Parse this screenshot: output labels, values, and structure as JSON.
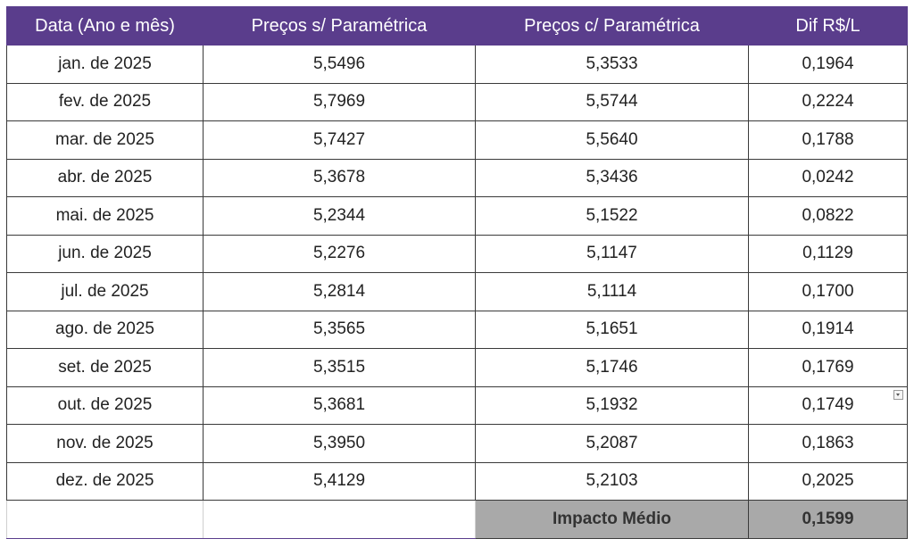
{
  "table": {
    "header": [
      "Data (Ano e mês)",
      "Preços s/ Paramétrica",
      "Preços c/ Paramétrica",
      "Dif R$/L"
    ],
    "rows": [
      [
        "jan. de 2025",
        "5,5496",
        "5,3533",
        "0,1964"
      ],
      [
        "fev. de 2025",
        "5,7969",
        "5,5744",
        "0,2224"
      ],
      [
        "mar. de 2025",
        "5,7427",
        "5,5640",
        "0,1788"
      ],
      [
        "abr. de 2025",
        "5,3678",
        "5,3436",
        "0,0242"
      ],
      [
        "mai. de 2025",
        "5,2344",
        "5,1522",
        "0,0822"
      ],
      [
        "jun. de 2025",
        "5,2276",
        "5,1147",
        "0,1129"
      ],
      [
        "jul. de 2025",
        "5,2814",
        "5,1114",
        "0,1700"
      ],
      [
        "ago. de 2025",
        "5,3565",
        "5,1651",
        "0,1914"
      ],
      [
        "set. de 2025",
        "5,3515",
        "5,1746",
        "0,1769"
      ],
      [
        "out. de 2025",
        "5,3681",
        "5,1932",
        "0,1749"
      ],
      [
        "nov. de 2025",
        "5,3950",
        "5,2087",
        "0,1863"
      ],
      [
        "dez. de 2025",
        "5,4129",
        "5,2103",
        "0,2025"
      ]
    ],
    "footer": {
      "label": "Impacto Médio",
      "value": "0,1599"
    }
  }
}
